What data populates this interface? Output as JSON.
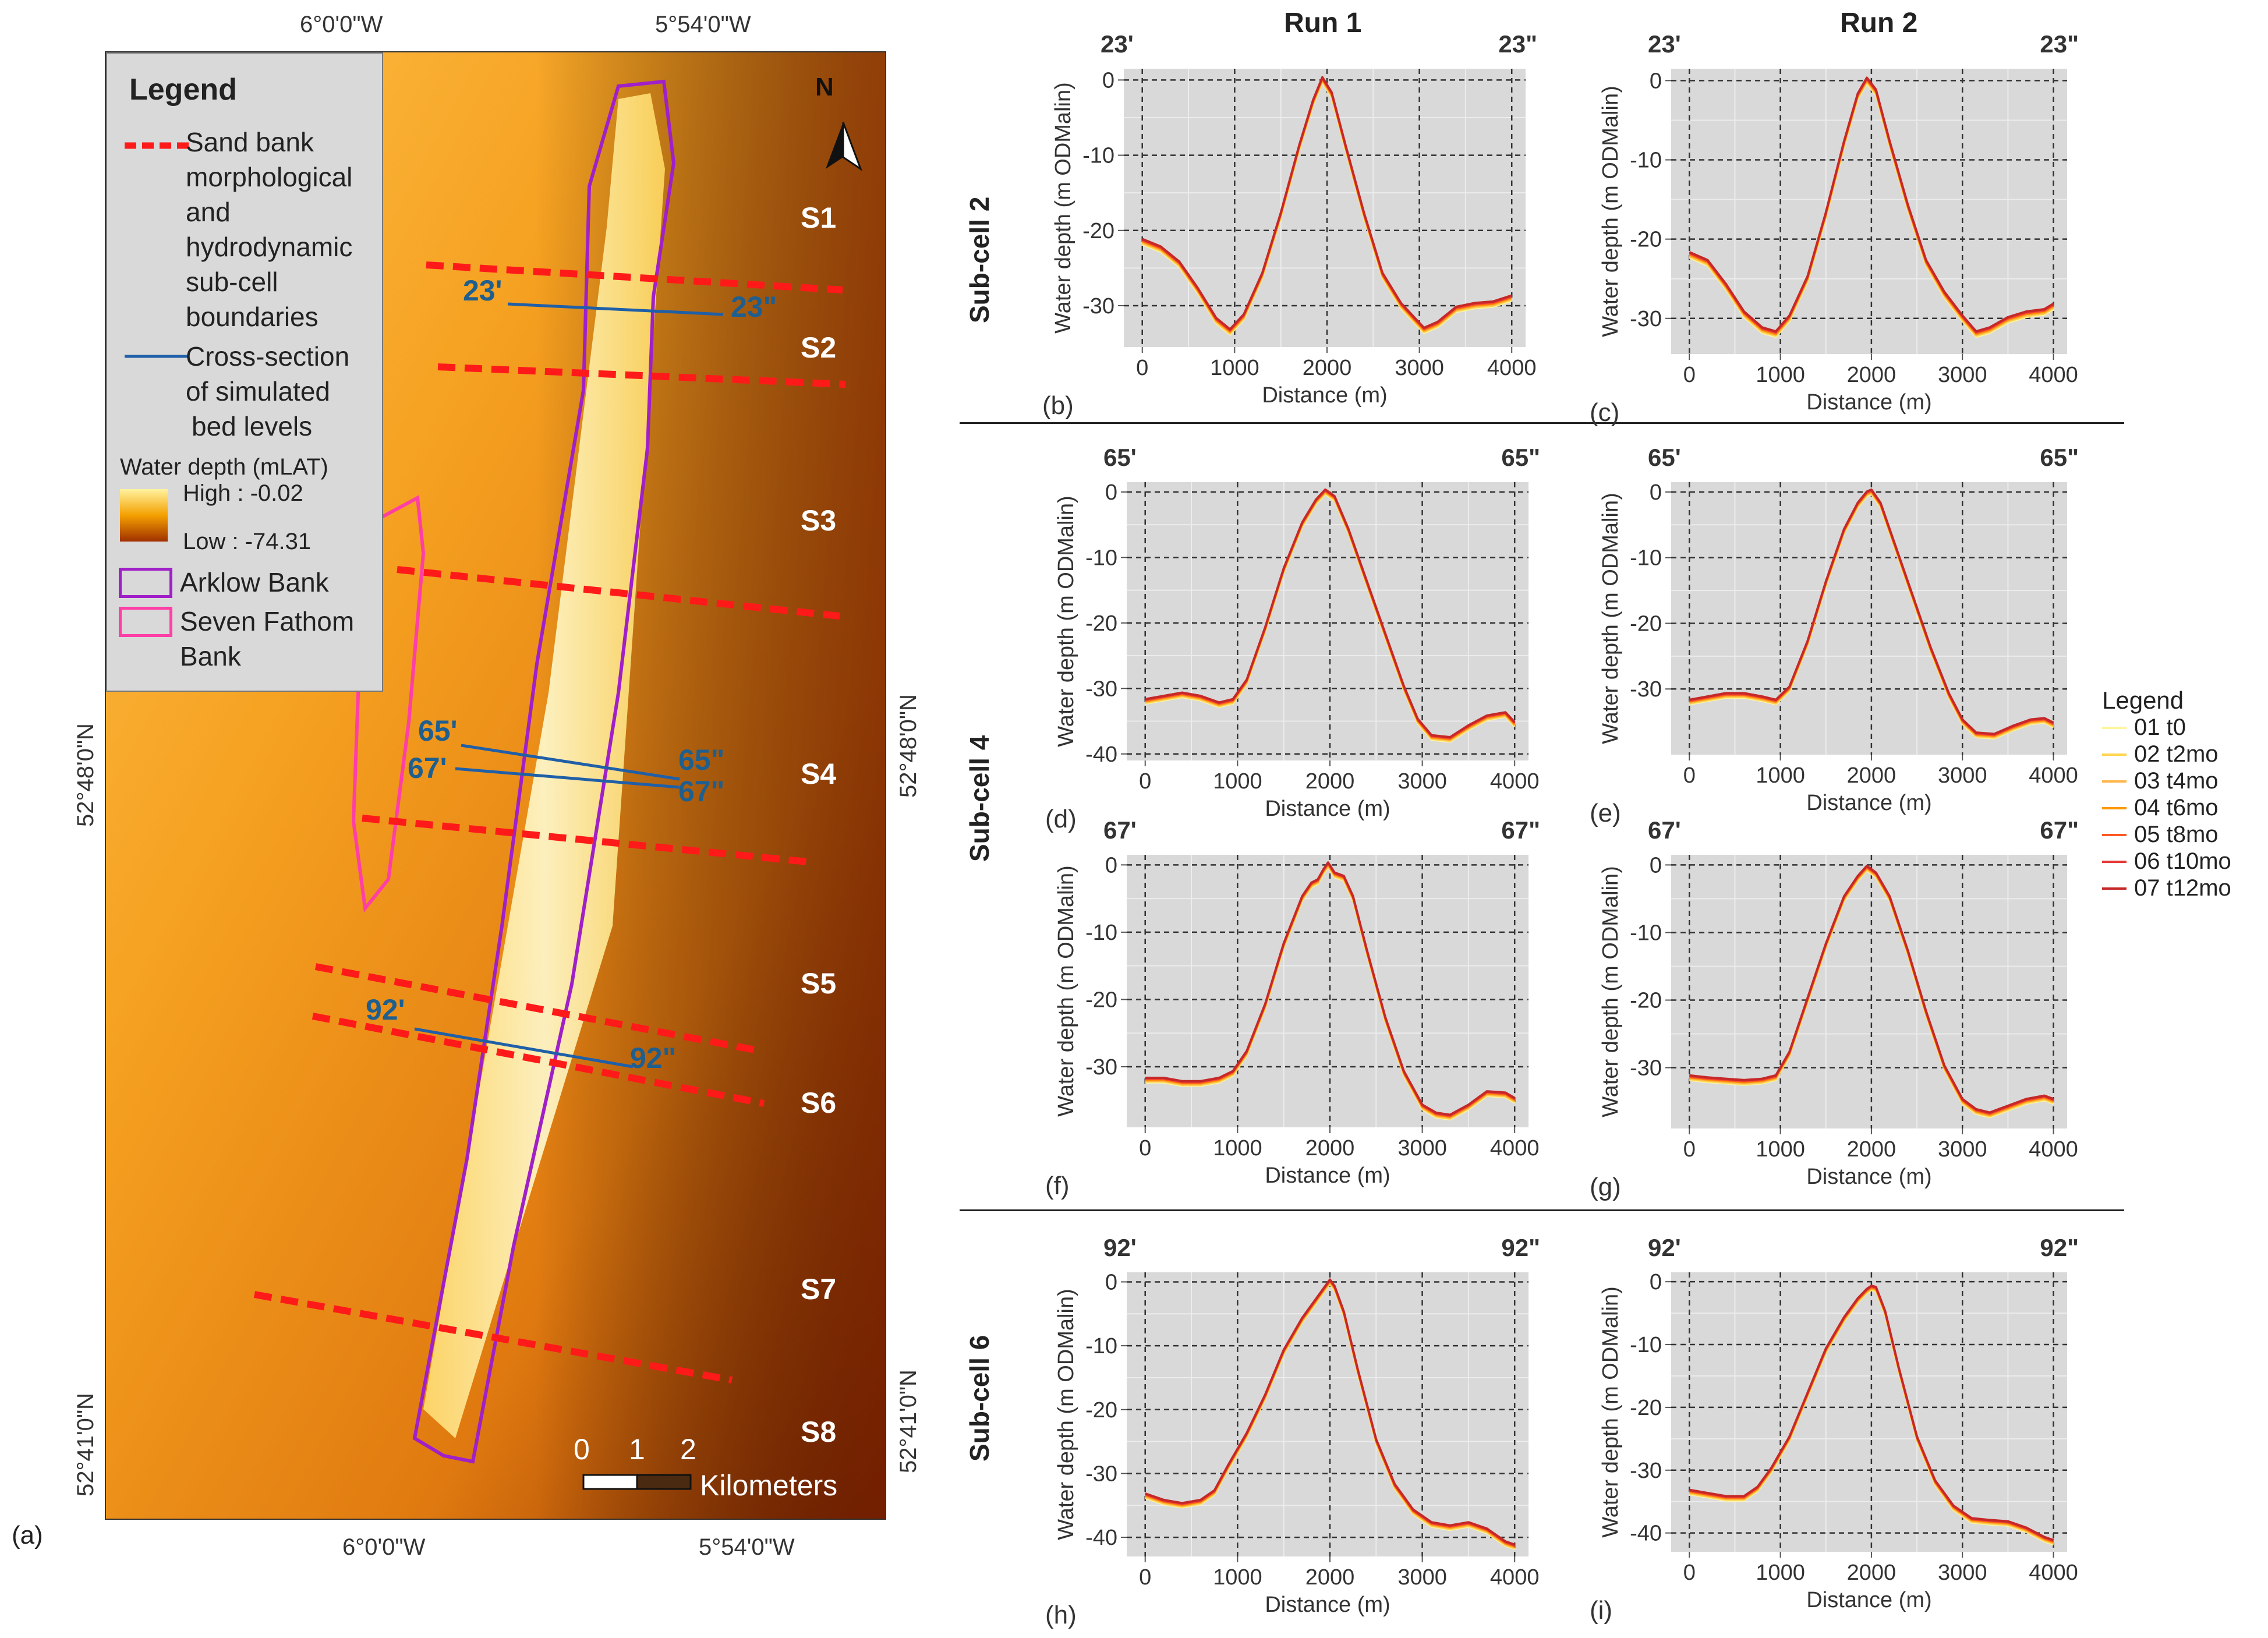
{
  "map": {
    "panel_label": "(a)",
    "top_lon_labels": [
      "6°0'0\"W",
      "5°54'0\"W"
    ],
    "bottom_lon_labels": [
      "6°0'0\"W",
      "5°54'0\"W"
    ],
    "left_lat_labels": [
      "52°48'0\"N",
      "52°41'0\"N"
    ],
    "right_lat_labels": [
      "52°48'0\"N",
      "52°41'0\"N"
    ],
    "north_label": "N",
    "subcells": [
      "S1",
      "S2",
      "S3",
      "S4",
      "S5",
      "S6",
      "S7",
      "S8"
    ],
    "section_labels": [
      "23'",
      "23\"",
      "65'",
      "65\"",
      "67'",
      "67\"",
      "92'",
      "92\""
    ],
    "scale_ticks": [
      "0",
      "1",
      "2"
    ],
    "scale_unit": "Kilometers",
    "colors": {
      "dashed_boundary": "#ff1a1a",
      "cross_section": "#1f5fa8",
      "arklow": "#a020c8",
      "seven_fathom": "#ff3fa6",
      "label_blue": "#1f5f8f"
    },
    "legend": {
      "title": "Legend",
      "boundary_label_lines": [
        "Sand bank",
        "morphological",
        "and",
        "hydrodynamic",
        "sub-cell",
        "boundaries"
      ],
      "cross_section_lines": [
        "Cross-section",
        "of simulated",
        "bed levels"
      ],
      "depth_title": "Water depth (mLAT)",
      "depth_high": "High : -0.02",
      "depth_low": "Low : -74.31",
      "arklow_label": "Arklow Bank",
      "seven_fathom_lines": [
        "Seven Fathom",
        "Bank"
      ]
    }
  },
  "profiles": {
    "column_titles": [
      "Run 1",
      "Run 2"
    ],
    "row_labels": [
      "Sub-cell 2",
      "Sub-cell 4",
      "Sub-cell 6"
    ],
    "ylabel": "Water depth (m ODMalin)",
    "xlabel": "Distance (m)",
    "series_legend": {
      "title": "Legend",
      "items": [
        {
          "name": "01 t0",
          "color": "#fff59d"
        },
        {
          "name": "02 t2mo",
          "color": "#ffd54f"
        },
        {
          "name": "03 t4mo",
          "color": "#ffb74d"
        },
        {
          "name": "04 t6mo",
          "color": "#ff9800"
        },
        {
          "name": "05 t8mo",
          "color": "#ff5722"
        },
        {
          "name": "06 t10mo",
          "color": "#e53935"
        },
        {
          "name": "07 t12mo",
          "color": "#c62828"
        }
      ]
    }
  },
  "chart_data": [
    {
      "type": "line",
      "panel": "(b)",
      "left_label": "23'",
      "right_label": "23\"",
      "xlim": [
        -200,
        4150
      ],
      "ylim": [
        -35.5,
        1.5
      ],
      "xticks": [
        0,
        1000,
        2000,
        3000,
        4000
      ],
      "yticks": [
        0,
        -10,
        -20,
        -30
      ],
      "x": [
        0,
        200,
        400,
        600,
        800,
        950,
        1100,
        1300,
        1500,
        1700,
        1850,
        1950,
        2050,
        2200,
        2400,
        2600,
        2800,
        2950,
        3050,
        3200,
        3400,
        3600,
        3800,
        4000
      ],
      "y": [
        -21.5,
        -22.5,
        -24.5,
        -28,
        -32,
        -33.5,
        -31.5,
        -26,
        -18,
        -9,
        -3,
        0,
        -2,
        -9,
        -18,
        -26,
        -30,
        -32,
        -33.3,
        -32.5,
        -30.5,
        -30,
        -29.8,
        -29
      ]
    },
    {
      "type": "line",
      "panel": "(c)",
      "left_label": "23'",
      "right_label": "23\"",
      "xlim": [
        -200,
        4150
      ],
      "ylim": [
        -34.5,
        1.5
      ],
      "xticks": [
        0,
        1000,
        2000,
        3000,
        4000
      ],
      "yticks": [
        0,
        -10,
        -20,
        -30
      ],
      "x": [
        0,
        200,
        400,
        600,
        800,
        950,
        1100,
        1300,
        1500,
        1700,
        1850,
        1950,
        2050,
        2200,
        2400,
        2600,
        2800,
        3000,
        3150,
        3300,
        3500,
        3700,
        3900,
        4000
      ],
      "y": [
        -22,
        -23,
        -26,
        -29.5,
        -31.5,
        -32,
        -30,
        -25,
        -17,
        -8,
        -2,
        0,
        -1.5,
        -8,
        -16,
        -23,
        -27,
        -30,
        -32,
        -31.5,
        -30.2,
        -29.5,
        -29.2,
        -28.5
      ]
    },
    {
      "type": "line",
      "panel": "(d)",
      "left_label": "65'",
      "right_label": "65\"",
      "xlim": [
        -200,
        4150
      ],
      "ylim": [
        -41,
        1.5
      ],
      "xticks": [
        0,
        1000,
        2000,
        3000,
        4000
      ],
      "yticks": [
        0,
        -10,
        -20,
        -30,
        -40
      ],
      "x": [
        0,
        200,
        400,
        600,
        800,
        950,
        1100,
        1300,
        1500,
        1700,
        1850,
        1950,
        2050,
        2200,
        2400,
        2600,
        2800,
        2950,
        3100,
        3300,
        3500,
        3700,
        3900,
        4000
      ],
      "y": [
        -32,
        -31.5,
        -31,
        -31.5,
        -32.5,
        -32,
        -29,
        -21,
        -12,
        -5,
        -1.5,
        0,
        -1,
        -6,
        -14,
        -22,
        -30,
        -35,
        -37.5,
        -37.8,
        -36,
        -34.5,
        -34,
        -35.5
      ]
    },
    {
      "type": "line",
      "panel": "(e)",
      "left_label": "65'",
      "right_label": "65\"",
      "xlim": [
        -200,
        4150
      ],
      "ylim": [
        -40,
        1.5
      ],
      "xticks": [
        0,
        1000,
        2000,
        3000,
        4000
      ],
      "yticks": [
        0,
        -10,
        -20,
        -30
      ],
      "x": [
        0,
        200,
        400,
        600,
        800,
        950,
        1100,
        1300,
        1500,
        1700,
        1850,
        1950,
        2000,
        2100,
        2250,
        2450,
        2650,
        2850,
        3000,
        3150,
        3350,
        3550,
        3750,
        3900,
        4000
      ],
      "y": [
        -32,
        -31.5,
        -31,
        -31,
        -31.5,
        -32,
        -30,
        -23,
        -14,
        -6,
        -2,
        -0.3,
        0,
        -2,
        -8,
        -16,
        -24,
        -31,
        -35,
        -37,
        -37.2,
        -36,
        -35,
        -34.8,
        -35.5
      ]
    },
    {
      "type": "line",
      "panel": "(f)",
      "left_label": "67'",
      "right_label": "67\"",
      "xlim": [
        -200,
        4150
      ],
      "ylim": [
        -39,
        1.5
      ],
      "xticks": [
        0,
        1000,
        2000,
        3000,
        4000
      ],
      "yticks": [
        0,
        -10,
        -20,
        -30
      ],
      "x": [
        0,
        200,
        400,
        600,
        800,
        950,
        1100,
        1300,
        1500,
        1700,
        1800,
        1870,
        1930,
        1980,
        2050,
        2150,
        2250,
        2400,
        2600,
        2800,
        3000,
        3150,
        3300,
        3500,
        3700,
        3900,
        4000
      ],
      "y": [
        -32,
        -32,
        -32.5,
        -32.5,
        -32,
        -31,
        -28,
        -21,
        -12,
        -5,
        -3,
        -2.5,
        -1,
        0,
        -1.5,
        -2,
        -5,
        -13,
        -23,
        -31,
        -36,
        -37.2,
        -37.5,
        -36,
        -34,
        -34.2,
        -35
      ]
    },
    {
      "type": "line",
      "panel": "(g)",
      "left_label": "67'",
      "right_label": "67\"",
      "xlim": [
        -200,
        4150
      ],
      "ylim": [
        -39,
        1.5
      ],
      "xticks": [
        0,
        1000,
        2000,
        3000,
        4000
      ],
      "yticks": [
        0,
        -10,
        -20,
        -30
      ],
      "x": [
        0,
        200,
        400,
        600,
        800,
        950,
        1100,
        1300,
        1500,
        1700,
        1850,
        1950,
        2050,
        2200,
        2400,
        2600,
        2800,
        3000,
        3150,
        3300,
        3500,
        3700,
        3900,
        4000
      ],
      "y": [
        -31.5,
        -31.8,
        -32,
        -32.2,
        -32,
        -31.5,
        -28,
        -20,
        -12,
        -5,
        -2,
        -0.5,
        -1.5,
        -5,
        -13,
        -22,
        -30,
        -35,
        -36.5,
        -37,
        -36,
        -35,
        -34.5,
        -35
      ]
    },
    {
      "type": "line",
      "panel": "(h)",
      "left_label": "92'",
      "right_label": "92\"",
      "xlim": [
        -200,
        4150
      ],
      "ylim": [
        -43,
        1.5
      ],
      "xticks": [
        0,
        1000,
        2000,
        3000,
        4000
      ],
      "yticks": [
        0,
        -10,
        -20,
        -30,
        -40
      ],
      "x": [
        0,
        200,
        400,
        600,
        750,
        900,
        1100,
        1300,
        1500,
        1700,
        1850,
        1950,
        2000,
        2050,
        2150,
        2300,
        2500,
        2700,
        2900,
        3100,
        3300,
        3500,
        3700,
        3900,
        4000
      ],
      "y": [
        -33.5,
        -34.5,
        -35,
        -34.5,
        -33,
        -29,
        -24,
        -18,
        -11,
        -6,
        -3,
        -1,
        0,
        -1,
        -5,
        -14,
        -25,
        -32,
        -36,
        -38,
        -38.5,
        -38,
        -39,
        -41,
        -41.5
      ]
    },
    {
      "type": "line",
      "panel": "(i)",
      "left_label": "92'",
      "right_label": "92\"",
      "xlim": [
        -200,
        4150
      ],
      "ylim": [
        -43,
        1.5
      ],
      "xticks": [
        0,
        1000,
        2000,
        3000,
        4000
      ],
      "yticks": [
        0,
        -10,
        -20,
        -30,
        -40
      ],
      "x": [
        0,
        200,
        400,
        600,
        750,
        900,
        1100,
        1300,
        1500,
        1700,
        1850,
        1950,
        2000,
        2050,
        2150,
        2300,
        2500,
        2700,
        2900,
        3100,
        3300,
        3500,
        3700,
        3900,
        4000
      ],
      "y": [
        -33.5,
        -34,
        -34.5,
        -34.5,
        -33,
        -30,
        -25,
        -18,
        -11,
        -6,
        -3,
        -1.5,
        -1,
        -1.2,
        -5,
        -14,
        -25,
        -32,
        -36,
        -38,
        -38.3,
        -38.5,
        -39.5,
        -41,
        -41.5
      ]
    }
  ]
}
